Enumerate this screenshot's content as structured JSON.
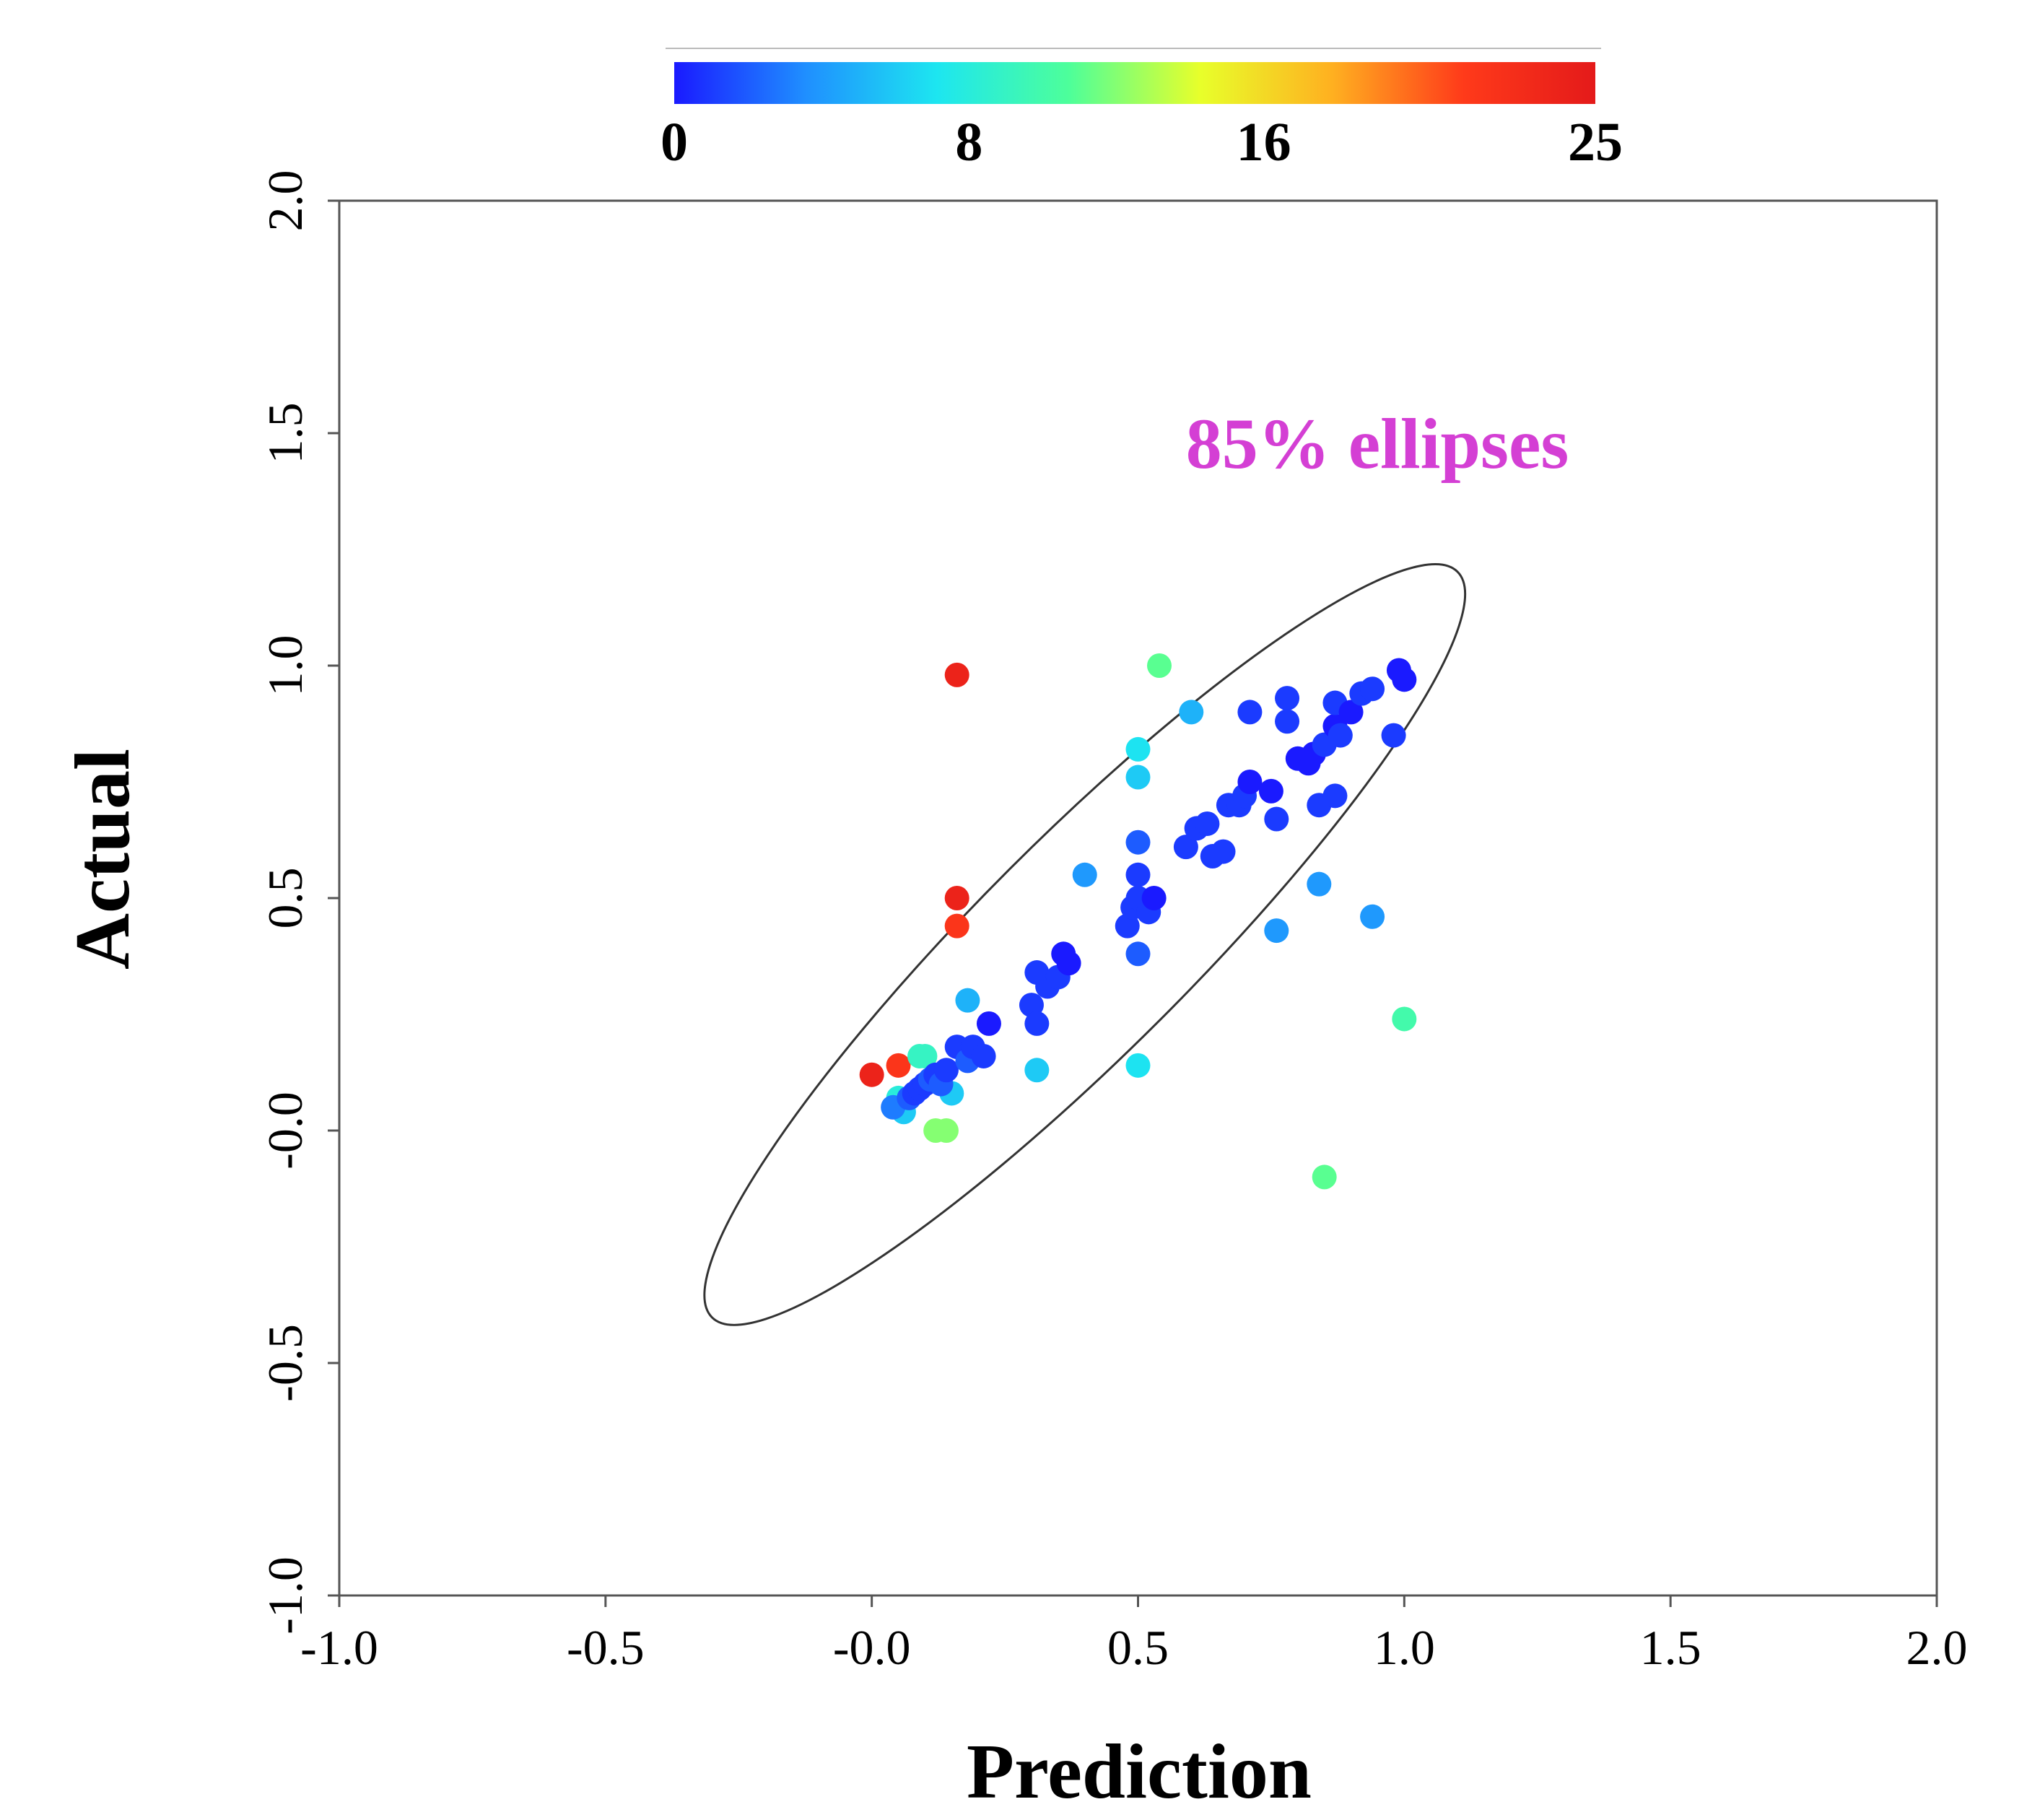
{
  "chart_data": {
    "type": "scatter",
    "title": "",
    "xlabel": "Prediction",
    "ylabel": "Actual",
    "xlim": [
      -1.0,
      2.0
    ],
    "ylim": [
      -1.0,
      2.0
    ],
    "x_ticks": [
      "-1.0",
      "-0.5",
      "-0.0",
      "0.5",
      "1.0",
      "1.5",
      "2.0"
    ],
    "y_ticks": [
      "-1.0",
      "-0.5",
      "-0.0",
      "0.5",
      "1.0",
      "1.5",
      "2.0"
    ],
    "grid": false,
    "annotation": {
      "text": "85% ellipses",
      "color": "#d43fd4"
    },
    "colorbar": {
      "range": [
        0,
        25
      ],
      "ticks": [
        "0",
        "8",
        "16",
        "25"
      ],
      "placement": "top",
      "colors": [
        "#1a1aff",
        "#1f8fff",
        "#1de6f0",
        "#4dff9a",
        "#e8ff2a",
        "#ffb020",
        "#ff3a1a",
        "#e41a1a"
      ]
    },
    "ellipse": {
      "confidence": "85%",
      "center": [
        0.4,
        0.4
      ],
      "angle_deg": 45,
      "semi_major": 0.99,
      "semi_minor": 0.2,
      "stroke": "#333333"
    },
    "series": [
      {
        "name": "samples",
        "color_variable_label": "",
        "points": [
          [
            0.16,
            0.98,
            24
          ],
          [
            0.16,
            0.5,
            24
          ],
          [
            0.16,
            0.44,
            22
          ],
          [
            0.0,
            0.12,
            24
          ],
          [
            0.05,
            0.14,
            22
          ],
          [
            0.54,
            1.0,
            11
          ],
          [
            0.12,
            -0.0,
            12
          ],
          [
            0.14,
            -0.0,
            12
          ],
          [
            0.85,
            -0.1,
            11
          ],
          [
            1.0,
            0.24,
            10
          ],
          [
            0.09,
            0.16,
            9
          ],
          [
            0.1,
            0.16,
            9
          ],
          [
            0.05,
            0.07,
            8
          ],
          [
            0.5,
            0.82,
            7
          ],
          [
            0.5,
            0.76,
            6
          ],
          [
            0.5,
            0.14,
            7
          ],
          [
            0.31,
            0.13,
            6
          ],
          [
            0.18,
            0.28,
            5
          ],
          [
            0.6,
            0.9,
            5
          ],
          [
            0.4,
            0.55,
            4
          ],
          [
            0.94,
            0.46,
            4
          ],
          [
            0.76,
            0.43,
            4
          ],
          [
            0.84,
            0.53,
            4
          ],
          [
            0.06,
            0.04,
            6
          ],
          [
            0.15,
            0.08,
            6
          ],
          [
            0.04,
            0.05,
            3
          ],
          [
            0.07,
            0.07,
            2
          ],
          [
            0.08,
            0.08,
            1
          ],
          [
            0.09,
            0.09,
            1
          ],
          [
            0.1,
            0.1,
            1
          ],
          [
            0.11,
            0.11,
            2
          ],
          [
            0.12,
            0.12,
            1
          ],
          [
            0.13,
            0.1,
            2
          ],
          [
            0.14,
            0.13,
            1
          ],
          [
            0.16,
            0.18,
            1
          ],
          [
            0.18,
            0.15,
            2
          ],
          [
            0.19,
            0.18,
            1
          ],
          [
            0.21,
            0.16,
            1
          ],
          [
            0.22,
            0.23,
            0
          ],
          [
            0.3,
            0.27,
            1
          ],
          [
            0.31,
            0.34,
            1
          ],
          [
            0.31,
            0.23,
            1
          ],
          [
            0.33,
            0.31,
            1
          ],
          [
            0.35,
            0.33,
            1
          ],
          [
            0.36,
            0.38,
            0
          ],
          [
            0.37,
            0.36,
            0
          ],
          [
            0.48,
            0.44,
            1
          ],
          [
            0.49,
            0.48,
            1
          ],
          [
            0.5,
            0.5,
            1
          ],
          [
            0.5,
            0.55,
            1
          ],
          [
            0.5,
            0.62,
            2
          ],
          [
            0.5,
            0.38,
            2
          ],
          [
            0.52,
            0.47,
            1
          ],
          [
            0.53,
            0.5,
            0
          ],
          [
            0.59,
            0.61,
            1
          ],
          [
            0.61,
            0.65,
            1
          ],
          [
            0.63,
            0.66,
            1
          ],
          [
            0.64,
            0.59,
            1
          ],
          [
            0.66,
            0.6,
            1
          ],
          [
            0.67,
            0.7,
            1
          ],
          [
            0.69,
            0.7,
            1
          ],
          [
            0.7,
            0.72,
            1
          ],
          [
            0.71,
            0.9,
            1
          ],
          [
            0.71,
            0.75,
            0
          ],
          [
            0.75,
            0.73,
            0
          ],
          [
            0.76,
            0.67,
            1
          ],
          [
            0.78,
            0.93,
            1
          ],
          [
            0.78,
            0.88,
            1
          ],
          [
            0.8,
            0.8,
            0
          ],
          [
            0.82,
            0.79,
            0
          ],
          [
            0.83,
            0.81,
            0
          ],
          [
            0.84,
            0.7,
            1
          ],
          [
            0.85,
            0.83,
            1
          ],
          [
            0.87,
            0.72,
            1
          ],
          [
            0.87,
            0.87,
            0
          ],
          [
            0.87,
            0.92,
            1
          ],
          [
            0.88,
            0.85,
            1
          ],
          [
            0.9,
            0.9,
            0
          ],
          [
            0.92,
            0.94,
            1
          ],
          [
            0.94,
            0.95,
            1
          ],
          [
            0.98,
            0.85,
            1
          ],
          [
            0.99,
            0.99,
            0
          ],
          [
            1.0,
            0.97,
            0
          ]
        ]
      }
    ]
  }
}
